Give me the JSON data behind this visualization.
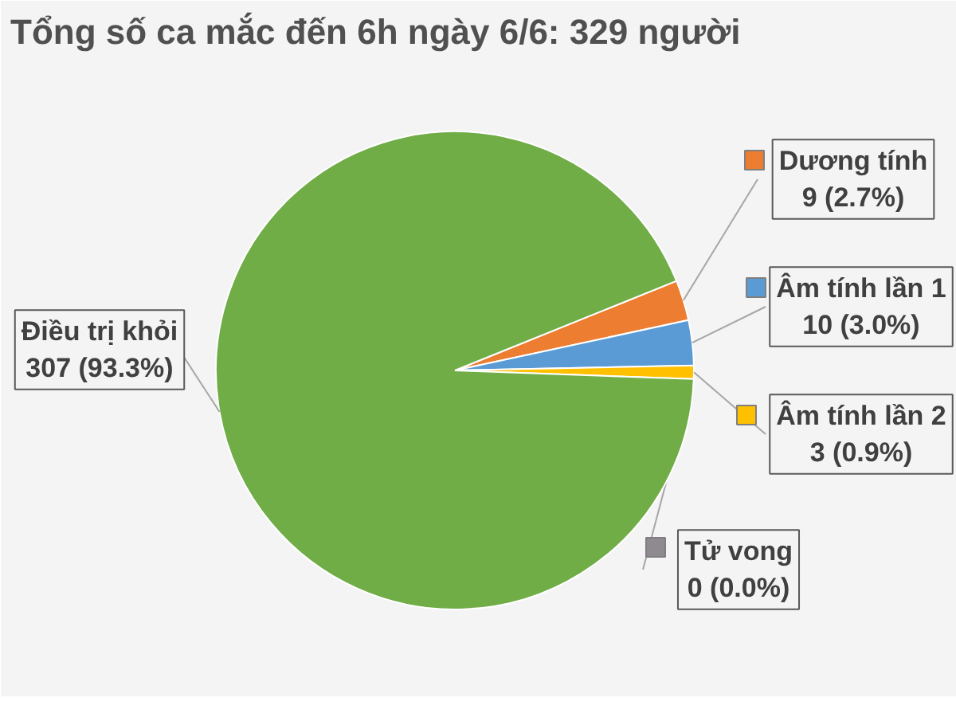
{
  "chart_data": {
    "type": "pie",
    "title": "Tổng số ca mắc đến 6h ngày 6/6: 329 người",
    "categories": [
      "Dương tính",
      "Âm tính lần 1",
      "Âm tính lần 2",
      "Tử vong",
      "Điều trị khỏi"
    ],
    "values": [
      9,
      10,
      3,
      0,
      307
    ],
    "colors": [
      "#ed7d31",
      "#5b9bd5",
      "#ffc000",
      "#8e8a90",
      "#70ad47"
    ],
    "value_labels": [
      "9 (2.7%)",
      "10 (3.0%)",
      "3 (0.9%)",
      "0 (0.0%)",
      "307 (93.3%)"
    ],
    "legend": "right"
  }
}
